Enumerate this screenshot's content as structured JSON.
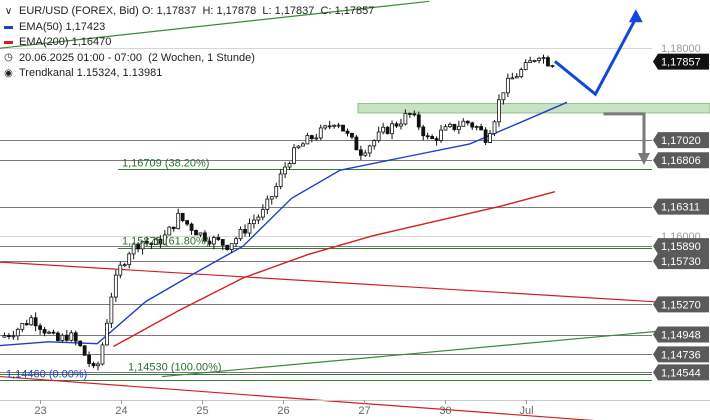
{
  "chart_data": {
    "type": "candlestick",
    "instrument": "EUR/USD (FOREX, Bid)",
    "ohlc": {
      "o_label": "O:",
      "o": "1,17837",
      "h_label": "H:",
      "h": "1,17878",
      "l_label": "L:",
      "l": "1,17837",
      "c_label": "C:",
      "c": "1,17857"
    },
    "legend": [
      {
        "name": "EMA(50)",
        "value": "1,17423",
        "color": "#1f3fc9"
      },
      {
        "name": "EMA(200)",
        "value": "1,16470",
        "color": "#d42020"
      }
    ],
    "period": "20.06.2025 01:00 - 07:00",
    "period_detail": "(2 Wochen, 1 Stunde)",
    "trend_channel": "Trendkanal  1.15324, 1.13981",
    "ylim": [
      1.1425,
      1.1845
    ],
    "x_ticks": [
      {
        "label": "23",
        "pos": 0.5
      },
      {
        "label": "24",
        "pos": 1.5
      },
      {
        "label": "25",
        "pos": 2.5
      },
      {
        "label": "26",
        "pos": 3.5
      },
      {
        "label": "27",
        "pos": 4.5
      },
      {
        "label": "30",
        "pos": 5.5
      },
      {
        "label": "Jul",
        "pos": 6.5
      }
    ],
    "price_levels": [
      {
        "label": "1,18000",
        "value": 1.18,
        "style": "plain"
      },
      {
        "label": "1,17857",
        "value": 1.17857,
        "style": "current"
      },
      {
        "label": "1,17020",
        "value": 1.1702,
        "style": "tag"
      },
      {
        "label": "1,16806",
        "value": 1.16806,
        "style": "tag"
      },
      {
        "label": "1,16311",
        "value": 1.16311,
        "style": "tag"
      },
      {
        "label": "1,16000",
        "value": 1.16,
        "style": "plain"
      },
      {
        "label": "1,15890",
        "value": 1.1589,
        "style": "tag"
      },
      {
        "label": "1,15730",
        "value": 1.1573,
        "style": "tag"
      },
      {
        "label": "1,15270",
        "value": 1.1527,
        "style": "tag"
      },
      {
        "label": "1,14948",
        "value": 1.14948,
        "style": "tag"
      },
      {
        "label": "1,14736",
        "value": 1.14736,
        "style": "tag"
      },
      {
        "label": "1,14544",
        "value": 1.14544,
        "style": "tag"
      }
    ],
    "resistance_zone": [
      1.1731,
      1.1741
    ],
    "fibonacci": [
      {
        "label": "1,16709 (38.20%)",
        "value": 1.16709
      },
      {
        "label": "1,15875 (61.80%)",
        "value": 1.15875
      },
      {
        "label": "1,14530 (100.00%)",
        "value": 1.1453
      },
      {
        "label": "1,14460 (0.00%)",
        "value": 1.1446
      }
    ],
    "price_path": [
      [
        0.0,
        1.1492
      ],
      [
        0.12,
        1.1496
      ],
      [
        0.25,
        1.1503
      ],
      [
        0.4,
        1.1513
      ],
      [
        0.55,
        1.15
      ],
      [
        0.7,
        1.1487
      ],
      [
        0.85,
        1.1495
      ],
      [
        1.0,
        1.148
      ],
      [
        1.1,
        1.1465
      ],
      [
        1.18,
        1.1452
      ],
      [
        1.28,
        1.149
      ],
      [
        1.38,
        1.154
      ],
      [
        1.48,
        1.1565
      ],
      [
        1.6,
        1.1585
      ],
      [
        1.75,
        1.1595
      ],
      [
        1.9,
        1.159
      ],
      [
        2.05,
        1.16
      ],
      [
        2.2,
        1.162
      ],
      [
        2.35,
        1.161
      ],
      [
        2.5,
        1.16
      ],
      [
        2.65,
        1.1595
      ],
      [
        2.8,
        1.159
      ],
      [
        2.95,
        1.16
      ],
      [
        3.1,
        1.1615
      ],
      [
        3.25,
        1.1625
      ],
      [
        3.4,
        1.165
      ],
      [
        3.55,
        1.168
      ],
      [
        3.7,
        1.1695
      ],
      [
        3.85,
        1.1705
      ],
      [
        4.0,
        1.1712
      ],
      [
        4.15,
        1.1725
      ],
      [
        4.3,
        1.1705
      ],
      [
        4.45,
        1.169
      ],
      [
        4.6,
        1.17
      ],
      [
        4.75,
        1.1712
      ],
      [
        4.9,
        1.172
      ],
      [
        5.05,
        1.173
      ],
      [
        5.2,
        1.1715
      ],
      [
        5.3,
        1.17
      ],
      [
        5.45,
        1.171
      ],
      [
        5.6,
        1.1716
      ],
      [
        5.75,
        1.1722
      ],
      [
        5.9,
        1.1715
      ],
      [
        6.0,
        1.1705
      ],
      [
        6.1,
        1.1725
      ],
      [
        6.2,
        1.1755
      ],
      [
        6.35,
        1.177
      ],
      [
        6.5,
        1.178
      ],
      [
        6.65,
        1.1795
      ],
      [
        6.75,
        1.1786
      ],
      [
        6.85,
        1.17857
      ]
    ],
    "ema50": [
      [
        0.0,
        1.1483
      ],
      [
        0.6,
        1.1487
      ],
      [
        1.2,
        1.1485
      ],
      [
        1.8,
        1.153
      ],
      [
        2.4,
        1.156
      ],
      [
        3.0,
        1.1589
      ],
      [
        3.6,
        1.164
      ],
      [
        4.2,
        1.167
      ],
      [
        5.0,
        1.1684
      ],
      [
        5.8,
        1.1698
      ],
      [
        6.4,
        1.172
      ],
      [
        7.0,
        1.17423
      ]
    ],
    "ema200": [
      [
        1.4,
        1.1482
      ],
      [
        2.2,
        1.152
      ],
      [
        3.0,
        1.1555
      ],
      [
        3.8,
        1.158
      ],
      [
        4.6,
        1.16
      ],
      [
        5.4,
        1.1616
      ],
      [
        6.2,
        1.1632
      ],
      [
        6.85,
        1.1647
      ]
    ],
    "trendlines": [
      {
        "name": "green-upper",
        "color": "#3a8a3a",
        "p1": [
          0.0,
          1.18
        ],
        "p2": [
          5.3,
          1.185
        ]
      },
      {
        "name": "green-lower",
        "color": "#3a8a3a",
        "p1": [
          2.0,
          1.145
        ],
        "p2": [
          8.6,
          1.1502
        ]
      },
      {
        "name": "red-upper",
        "color": "#d42020",
        "p1": [
          0.0,
          1.1572
        ],
        "p2": [
          8.6,
          1.1527
        ]
      },
      {
        "name": "red-lower",
        "color": "#d42020",
        "p1": [
          0.0,
          1.145
        ],
        "p2": [
          8.6,
          1.1395
        ]
      }
    ],
    "scenario_up": [
      [
        6.85,
        1.1786
      ],
      [
        7.35,
        1.1751
      ],
      [
        7.85,
        1.1832
      ]
    ],
    "scenario_down": [
      [
        7.45,
        1.173
      ],
      [
        7.95,
        1.173
      ],
      [
        7.95,
        1.1684
      ]
    ]
  }
}
